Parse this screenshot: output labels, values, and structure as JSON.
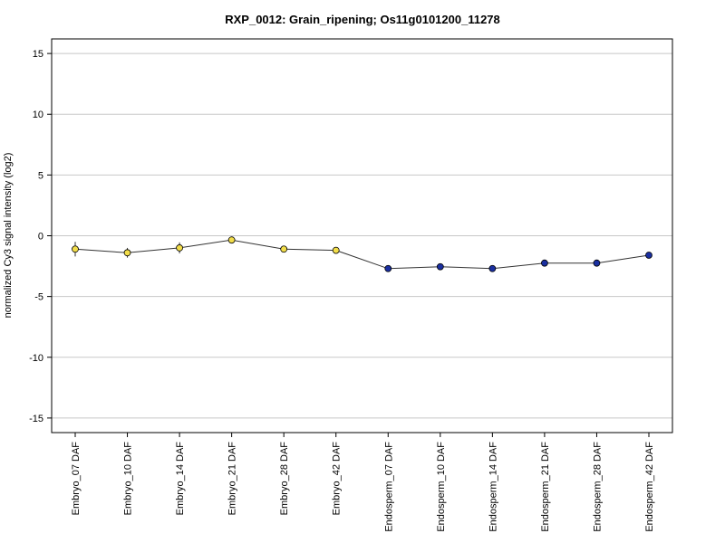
{
  "chart_data": {
    "type": "line",
    "title": "RXP_0012: Grain_ripening; Os11g0101200_11278",
    "xlabel": "",
    "ylabel": "normalized Cy3 signal intensity (log2)",
    "ylim": [
      -16.2,
      16.2
    ],
    "yticks": [
      -15,
      -10,
      -5,
      0,
      5,
      10,
      15
    ],
    "grid": true,
    "categories": [
      "Embryo_07 DAF",
      "Embryo_10 DAF",
      "Embryo_14 DAF",
      "Embryo_21 DAF",
      "Embryo_28 DAF",
      "Embryo_42 DAF",
      "Endosperm_07 DAF",
      "Endosperm_10 DAF",
      "Endosperm_14 DAF",
      "Endosperm_21 DAF",
      "Endosperm_28 DAF",
      "Endosperm_42 DAF"
    ],
    "values": [
      -1.1,
      -1.4,
      -1.0,
      -0.35,
      -1.1,
      -1.2,
      -2.7,
      -2.55,
      -2.7,
      -2.25,
      -2.25,
      -1.6
    ],
    "errors": [
      0.6,
      0.4,
      0.45,
      0.1,
      0.15,
      0.1,
      0.1,
      0.1,
      0.1,
      0.1,
      0.1,
      0.1
    ],
    "point_colors": [
      "#f2dd4a",
      "#f2dd4a",
      "#f2dd4a",
      "#f2dd4a",
      "#f2dd4a",
      "#f2dd4a",
      "#1a2fa0",
      "#1a2fa0",
      "#1a2fa0",
      "#1a2fa0",
      "#1a2fa0",
      "#1a2fa0"
    ],
    "line_color": "#333333",
    "grid_color": "#c8c8c8"
  }
}
